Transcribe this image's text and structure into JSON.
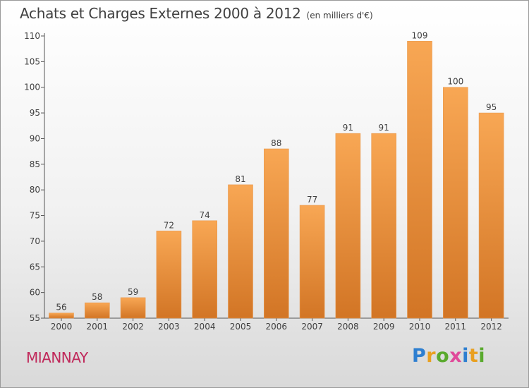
{
  "header": {
    "title": "Achats et Charges Externes 2000 à 2012",
    "unit": "(en milliers d'€)"
  },
  "footer": {
    "commune": "MIANNAY",
    "logo": "Proxiti"
  },
  "colors": {
    "bar_light": "#f8a754",
    "bar_dark": "#d27525",
    "axis": "#555555",
    "text": "#404040",
    "commune": "#c0285a"
  },
  "chart_data": {
    "type": "bar",
    "title": "Achats et Charges Externes 2000 à 2012",
    "subtitle": "(en milliers d'€)",
    "categories": [
      "2000",
      "2001",
      "2002",
      "2003",
      "2004",
      "2005",
      "2006",
      "2007",
      "2008",
      "2009",
      "2010",
      "2011",
      "2012"
    ],
    "values": [
      56,
      58,
      59,
      72,
      74,
      81,
      88,
      77,
      91,
      91,
      109,
      100,
      95
    ],
    "data_labels": [
      "56",
      "58",
      "59",
      "72",
      "74",
      "81",
      "88",
      "77",
      "91",
      "91",
      "109",
      "100",
      "95"
    ],
    "yticks": [
      55,
      60,
      65,
      70,
      75,
      80,
      85,
      90,
      95,
      100,
      105,
      110
    ],
    "ylim": [
      55,
      110
    ],
    "xlabel": "",
    "ylabel": "",
    "grid": false,
    "legend": "none"
  }
}
